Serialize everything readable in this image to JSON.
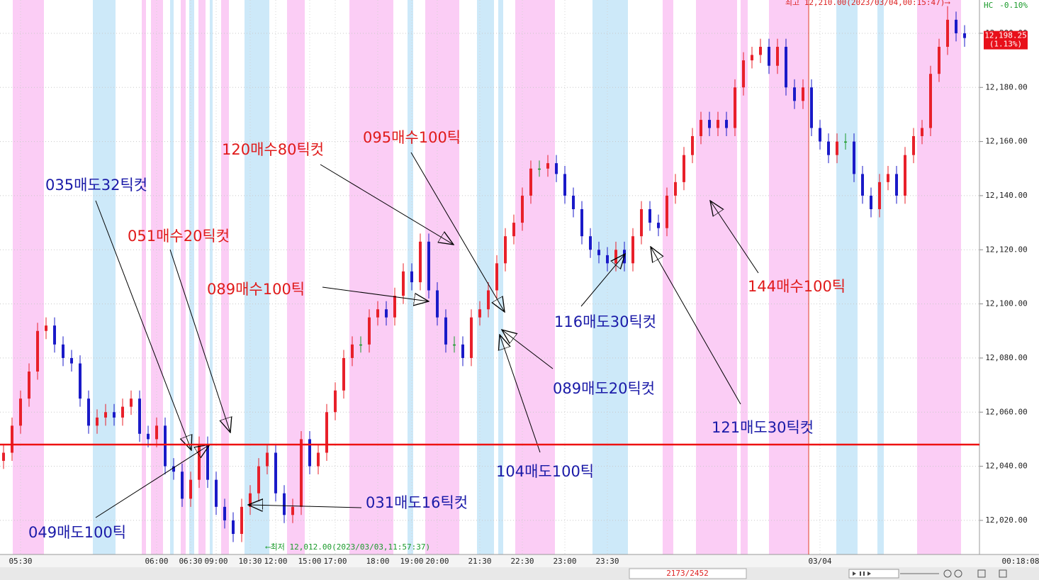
{
  "chart_data": {
    "type": "candlestick",
    "categories": [
      null,
      null,
      "05:30",
      null,
      null,
      null,
      null,
      null,
      null,
      null,
      null,
      null,
      null,
      null,
      null,
      null,
      null,
      null,
      "06:00",
      null,
      null,
      null,
      "06:30",
      null,
      null,
      "09:00",
      null,
      null,
      null,
      "10:30",
      null,
      null,
      "12:00",
      null,
      null,
      null,
      "15:00",
      null,
      null,
      "17:00",
      null,
      null,
      null,
      null,
      "18:00",
      null,
      null,
      null,
      "19:00",
      null,
      null,
      "20:00",
      null,
      null,
      null,
      null,
      "21:30",
      null,
      null,
      null,
      null,
      "22:30",
      null,
      null,
      null,
      null,
      "23:00",
      null,
      null,
      null,
      null,
      "23:30",
      null,
      null,
      null,
      null,
      null,
      null,
      null,
      null,
      null,
      null,
      null,
      null,
      null,
      null,
      null,
      null,
      null,
      null,
      null,
      null,
      null,
      null,
      null,
      null,
      "03/04",
      null,
      null,
      null,
      null,
      null,
      null,
      null,
      null,
      null,
      null,
      null,
      null,
      null,
      null,
      null,
      null,
      null
    ],
    "open": [
      12042,
      12045,
      12055,
      12065,
      12075,
      12090,
      12092,
      12085,
      12080,
      12078,
      12065,
      12055,
      12058,
      12060,
      12058,
      12062,
      12065,
      12052,
      12050,
      12055,
      12040,
      12038,
      12028,
      12035,
      12048,
      12035,
      12025,
      12020,
      12015,
      12025,
      12030,
      12040,
      12045,
      12030,
      12022,
      12025,
      12050,
      12040,
      12045,
      12060,
      12068,
      12080,
      12085,
      12085,
      12095,
      12098,
      12095,
      12103,
      12112,
      12108,
      12123,
      12105,
      12095,
      12085,
      12085,
      12080,
      12095,
      12098,
      12105,
      12115,
      12125,
      12130,
      12140,
      12150,
      12150,
      12152,
      12148,
      12140,
      12135,
      12125,
      12120,
      12118,
      12115,
      12120,
      12115,
      12125,
      12135,
      12130,
      12128,
      12140,
      12145,
      12155,
      12162,
      12168,
      12165,
      12168,
      12165,
      12180,
      12190,
      12192,
      12195,
      12188,
      12195,
      12180,
      12175,
      12180,
      12165,
      12160,
      12155,
      12160,
      12160,
      12148,
      12140,
      12135,
      12145,
      12148,
      12140,
      12155,
      12162,
      12165,
      12185,
      12195,
      12205,
      12200
    ],
    "high": [
      12048,
      12058,
      12068,
      12078,
      12093,
      12095,
      12095,
      12088,
      12083,
      12081,
      12068,
      12061,
      12063,
      12063,
      12065,
      12068,
      12068,
      12055,
      12058,
      12058,
      12043,
      12041,
      12038,
      12051,
      12051,
      12038,
      12028,
      12023,
      12028,
      12033,
      12043,
      12048,
      12048,
      12033,
      12028,
      12053,
      12053,
      12048,
      12063,
      12071,
      12083,
      12088,
      12088,
      12098,
      12101,
      12101,
      12106,
      12115,
      12115,
      12126,
      12126,
      12108,
      12098,
      12088,
      12088,
      12098,
      12101,
      12108,
      12118,
      12128,
      12133,
      12143,
      12153,
      12153,
      12155,
      12155,
      12151,
      12143,
      12138,
      12128,
      12123,
      12121,
      12123,
      12123,
      12128,
      12138,
      12138,
      12133,
      12143,
      12148,
      12158,
      12165,
      12171,
      12171,
      12171,
      12171,
      12183,
      12193,
      12195,
      12198,
      12198,
      12198,
      12198,
      12183,
      12183,
      12183,
      12168,
      12163,
      12163,
      12163,
      12163,
      12151,
      12143,
      12148,
      12151,
      12151,
      12158,
      12165,
      12168,
      12188,
      12198,
      12210,
      12208,
      12203
    ],
    "low": [
      12039,
      12042,
      12052,
      12062,
      12072,
      12087,
      12082,
      12077,
      12075,
      12062,
      12052,
      12052,
      12055,
      12055,
      12055,
      12059,
      12049,
      12047,
      12047,
      12037,
      12035,
      12025,
      12025,
      12032,
      12032,
      12022,
      12017,
      12012,
      12012,
      12022,
      12027,
      12037,
      12027,
      12019,
      12019,
      12022,
      12037,
      12037,
      12042,
      12057,
      12065,
      12077,
      12082,
      12082,
      12092,
      12092,
      12092,
      12100,
      12105,
      12105,
      12102,
      12092,
      12082,
      12082,
      12077,
      12077,
      12092,
      12095,
      12102,
      12112,
      12122,
      12127,
      12137,
      12147,
      12147,
      12145,
      12137,
      12132,
      12122,
      12117,
      12115,
      12112,
      12112,
      12112,
      12112,
      12122,
      12127,
      12125,
      12125,
      12137,
      12142,
      12152,
      12159,
      12162,
      12162,
      12162,
      12162,
      12177,
      12187,
      12189,
      12185,
      12185,
      12177,
      12172,
      12172,
      12162,
      12157,
      12152,
      12152,
      12157,
      12145,
      12137,
      12132,
      12132,
      12142,
      12137,
      12137,
      12152,
      12159,
      12162,
      12182,
      12192,
      12197,
      12195
    ],
    "close": [
      12045,
      12055,
      12065,
      12075,
      12090,
      12092,
      12085,
      12080,
      12078,
      12065,
      12055,
      12058,
      12060,
      12058,
      12062,
      12065,
      12052,
      12050,
      12055,
      12040,
      12038,
      12028,
      12035,
      12048,
      12035,
      12025,
      12020,
      12015,
      12025,
      12030,
      12040,
      12045,
      12030,
      12022,
      12025,
      12050,
      12040,
      12045,
      12060,
      12068,
      12080,
      12085,
      12085,
      12095,
      12098,
      12095,
      12103,
      12112,
      12108,
      12123,
      12105,
      12095,
      12085,
      12085,
      12080,
      12095,
      12098,
      12105,
      12115,
      12125,
      12130,
      12140,
      12150,
      12150,
      12152,
      12148,
      12140,
      12135,
      12125,
      12120,
      12118,
      12115,
      12120,
      12115,
      12125,
      12135,
      12130,
      12128,
      12140,
      12145,
      12155,
      12162,
      12168,
      12165,
      12168,
      12165,
      12180,
      12190,
      12192,
      12195,
      12188,
      12195,
      12180,
      12175,
      12180,
      12165,
      12160,
      12155,
      12160,
      12160,
      12148,
      12140,
      12135,
      12145,
      12148,
      12140,
      12155,
      12162,
      12165,
      12185,
      12195,
      12205,
      12200,
      12198.25
    ],
    "up_color": "#e8202a",
    "down_color": "#1a1ac8",
    "flat_color": "#1a9a2a",
    "ylim": [
      12007.4,
      12212.3
    ],
    "yticks": [
      {
        "value": 12020,
        "label": "12,020.00"
      },
      {
        "value": 12040,
        "label": "12,040.00"
      },
      {
        "value": 12060,
        "label": "12,060.00"
      },
      {
        "value": 12080,
        "label": "12,080.00"
      },
      {
        "value": 12100,
        "label": "12,100.00"
      },
      {
        "value": 12120,
        "label": "12,120.00"
      },
      {
        "value": 12140,
        "label": "12,140.00"
      },
      {
        "value": 12160,
        "label": "12,160.00"
      },
      {
        "value": 12180,
        "label": "12,180.00"
      },
      {
        "value": 12200,
        "label": "12,200.00"
      }
    ],
    "grid": true,
    "hline": {
      "value": 12048,
      "color": "#ee1111"
    },
    "last_price": {
      "label": "12,198.25",
      "change": "(1.13%)",
      "color": "#e8101a"
    },
    "high_note": "최고 12,210.00(2023/03/04,00:15:47)⟶",
    "low_note": "⟵최저 12,012.00(2023/03/03,11:57:37)",
    "hc_label": "HC",
    "hc_value": "-0.10%",
    "clock": "00:18:08",
    "position": "2173/2452",
    "annotations": [
      {
        "text": "035매도32틱컷",
        "color": "#1a1aa8"
      },
      {
        "text": "051매수20틱컷",
        "color": "#e01a1a"
      },
      {
        "text": "089매수100틱",
        "color": "#e01a1a"
      },
      {
        "text": "120매수80틱컷",
        "color": "#e01a1a"
      },
      {
        "text": "095매수100틱",
        "color": "#e01a1a"
      },
      {
        "text": "116매도30틱컷",
        "color": "#1a1aa8"
      },
      {
        "text": "089매도20틱컷",
        "color": "#1a1aa8"
      },
      {
        "text": "104매도100틱",
        "color": "#1a1aa8"
      },
      {
        "text": "121매도30틱컷",
        "color": "#1a1aa8"
      },
      {
        "text": "144매수100틱",
        "color": "#e01a1a"
      },
      {
        "text": "031매도16틱컷",
        "color": "#1a1aa8"
      },
      {
        "text": "049매도100틱",
        "color": "#1a1aa8"
      }
    ]
  }
}
